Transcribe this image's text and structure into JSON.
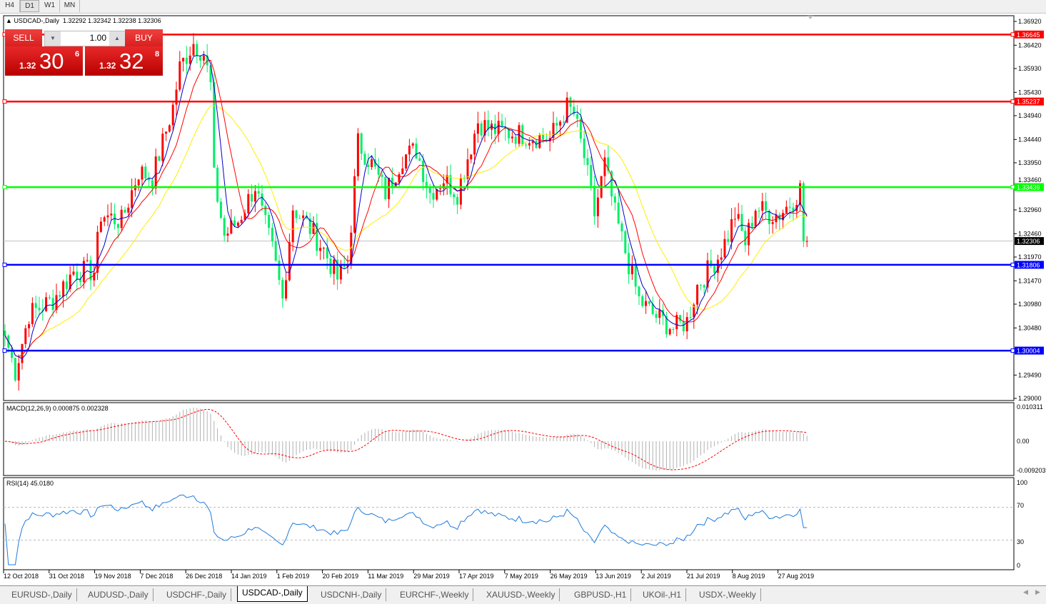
{
  "timeframes": [
    {
      "label": "H4",
      "active": false
    },
    {
      "label": "D1",
      "active": true
    },
    {
      "label": "W1",
      "active": false
    },
    {
      "label": "MN",
      "active": false
    }
  ],
  "header": {
    "symbol": "USDCAD-,Daily",
    "ohlc": "1.32292 1.32342 1.32238 1.32306"
  },
  "trade_panel": {
    "sell_label": "SELL",
    "buy_label": "BUY",
    "lot": "1.00",
    "sell_prefix": "1.32",
    "sell_big": "30",
    "sell_sup": "6",
    "buy_prefix": "1.32",
    "buy_big": "32",
    "buy_sup": "8"
  },
  "price_axis": [
    "1.36920",
    "1.36420",
    "1.35930",
    "1.35430",
    "1.34940",
    "1.34440",
    "1.33950",
    "1.33460",
    "1.32960",
    "1.32460",
    "1.31970",
    "1.31470",
    "1.30980",
    "1.30480",
    "1.29490",
    "1.29000"
  ],
  "price_axis_values": [
    1.3692,
    1.3642,
    1.3593,
    1.3543,
    1.3494,
    1.3444,
    1.3395,
    1.3346,
    1.3296,
    1.3246,
    1.3197,
    1.3147,
    1.3098,
    1.3048,
    1.2949,
    1.29
  ],
  "horizontal_lines": [
    {
      "label": "1.36645",
      "value": 1.36645,
      "color": "#ff0000"
    },
    {
      "label": "1.35237",
      "value": 1.35237,
      "color": "#ff0000"
    },
    {
      "label": "1.33439",
      "value": 1.33439,
      "color": "#00ff00"
    },
    {
      "label": "1.31806",
      "value": 1.31806,
      "color": "#0000ff"
    },
    {
      "label": "1.30004",
      "value": 1.30004,
      "color": "#0000ff"
    }
  ],
  "current_price": {
    "label": "1.32306",
    "value": 1.32306
  },
  "macd": {
    "label": "MACD(12,26,9) 0.000875 0.002328",
    "axis": [
      "0.010311",
      "0.00",
      "-0.009203"
    ]
  },
  "rsi": {
    "label": "RSI(14) 45.0180",
    "axis": [
      "100",
      "70",
      "30",
      "0"
    ]
  },
  "dates": [
    "12 Oct 2018",
    "31 Oct 2018",
    "19 Nov 2018",
    "7 Dec 2018",
    "26 Dec 2018",
    "14 Jan 2019",
    "1 Feb 2019",
    "20 Feb 2019",
    "11 Mar 2019",
    "29 Mar 2019",
    "17 Apr 2019",
    "7 May 2019",
    "26 May 2019",
    "13 Jun 2019",
    "2 Jul 2019",
    "21 Jul 2019",
    "8 Aug 2019",
    "27 Aug 2019"
  ],
  "bottom_tabs": [
    {
      "label": "EURUSD-,Daily",
      "active": false
    },
    {
      "label": "AUDUSD-,Daily",
      "active": false
    },
    {
      "label": "USDCHF-,Daily",
      "active": false
    },
    {
      "label": "USDCAD-,Daily",
      "active": true
    },
    {
      "label": "USDCNH-,Daily",
      "active": false
    },
    {
      "label": "EURCHF-,Weekly",
      "active": false
    },
    {
      "label": "XAUUSD-,Weekly",
      "active": false
    },
    {
      "label": "GBPUSD-,H1",
      "active": false
    },
    {
      "label": "UKOil-,H1",
      "active": false
    },
    {
      "label": "USDX-,Weekly",
      "active": false
    }
  ],
  "colors": {
    "bull": "#ff0000",
    "bear": "#00ee66",
    "ma_fast": "#0000cc",
    "ma_mid": "#ff0000",
    "ma_slow": "#ffee00",
    "macd_signal": "#ff0000",
    "rsi_line": "#1e7bdc"
  },
  "chart_data": {
    "type": "candlestick",
    "symbol": "USDCAD",
    "timeframe": "Daily",
    "ylim": [
      1.29,
      1.3692
    ],
    "approx_close_path": [
      [
        0,
        1.3032
      ],
      [
        3,
        1.2957
      ],
      [
        7,
        1.3077
      ],
      [
        14,
        1.3107
      ],
      [
        20,
        1.3167
      ],
      [
        26,
        1.3167
      ],
      [
        28,
        1.3287
      ],
      [
        34,
        1.3272
      ],
      [
        39,
        1.3377
      ],
      [
        43,
        1.3362
      ],
      [
        49,
        1.3512
      ],
      [
        51,
        1.3595
      ],
      [
        55,
        1.3647
      ],
      [
        58,
        1.3625
      ],
      [
        60,
        1.3557
      ],
      [
        61,
        1.3362
      ],
      [
        64,
        1.3242
      ],
      [
        68,
        1.3272
      ],
      [
        73,
        1.3347
      ],
      [
        75,
        1.3287
      ],
      [
        78,
        1.3212
      ],
      [
        81,
        1.3107
      ],
      [
        84,
        1.3302
      ],
      [
        89,
        1.3257
      ],
      [
        93,
        1.3212
      ],
      [
        97,
        1.3152
      ],
      [
        100,
        1.3182
      ],
      [
        103,
        1.3437
      ],
      [
        107,
        1.3392
      ],
      [
        111,
        1.3332
      ],
      [
        116,
        1.3407
      ],
      [
        120,
        1.3422
      ],
      [
        124,
        1.3332
      ],
      [
        128,
        1.3362
      ],
      [
        132,
        1.3332
      ],
      [
        138,
        1.3482
      ],
      [
        141,
        1.3467
      ],
      [
        145,
        1.346
      ],
      [
        153,
        1.3452
      ],
      [
        159,
        1.3445
      ],
      [
        164,
        1.3512
      ],
      [
        166,
        1.3497
      ],
      [
        169,
        1.3407
      ],
      [
        172,
        1.3287
      ],
      [
        175,
        1.3392
      ],
      [
        178,
        1.3287
      ],
      [
        182,
        1.3182
      ],
      [
        185,
        1.3107
      ],
      [
        189,
        1.3077
      ],
      [
        195,
        1.3047
      ],
      [
        199,
        1.3062
      ],
      [
        202,
        1.3137
      ],
      [
        205,
        1.3167
      ],
      [
        208,
        1.3197
      ],
      [
        211,
        1.3242
      ],
      [
        213,
        1.3287
      ],
      [
        216,
        1.3227
      ],
      [
        219,
        1.3302
      ],
      [
        223,
        1.3287
      ],
      [
        226,
        1.3287
      ],
      [
        230,
        1.3317
      ],
      [
        232,
        1.334
      ],
      [
        233,
        1.3232
      ],
      [
        234,
        1.32306
      ]
    ]
  }
}
